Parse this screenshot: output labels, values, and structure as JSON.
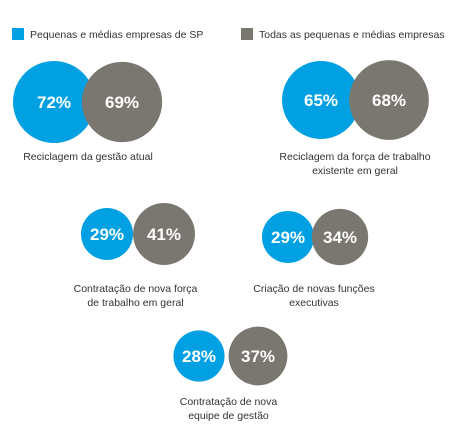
{
  "colors": {
    "sp": "#00a0e3",
    "all": "#7a7670",
    "text": "#333333"
  },
  "chart_data": {
    "type": "bubble-comparison",
    "legend_placement": "top",
    "series": [
      {
        "name": "Pequenas e médias empresas de SP"
      },
      {
        "name": "Todas as pequenas e médias empresas"
      }
    ],
    "items": [
      {
        "label": [
          "Reciclagem da gestão atual"
        ],
        "sp": 72,
        "all": 69
      },
      {
        "label": [
          "Reciclagem da força de trabalho",
          "existente em geral"
        ],
        "sp": 65,
        "all": 68
      },
      {
        "label": [
          "Contratação de nova força",
          "de trabalho em geral"
        ],
        "sp": 29,
        "all": 41
      },
      {
        "label": [
          "Criação de novas funções",
          "executivas"
        ],
        "sp": 29,
        "all": 34
      },
      {
        "label": [
          "Contratação de nova",
          "equipe de gestão"
        ],
        "sp": 28,
        "all": 37
      }
    ]
  }
}
